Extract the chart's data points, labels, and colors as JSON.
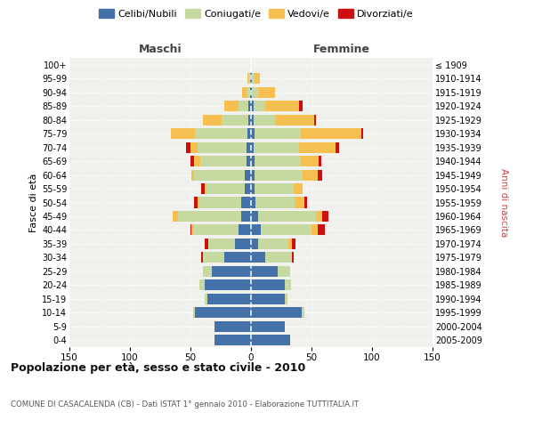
{
  "age_groups": [
    "100+",
    "95-99",
    "90-94",
    "85-89",
    "80-84",
    "75-79",
    "70-74",
    "65-69",
    "60-64",
    "55-59",
    "50-54",
    "45-49",
    "40-44",
    "35-39",
    "30-34",
    "25-29",
    "20-24",
    "15-19",
    "10-14",
    "5-9",
    "0-4"
  ],
  "birth_years": [
    "≤ 1909",
    "1910-1914",
    "1915-1919",
    "1920-1924",
    "1925-1929",
    "1930-1934",
    "1935-1939",
    "1940-1944",
    "1945-1949",
    "1950-1954",
    "1955-1959",
    "1960-1964",
    "1965-1969",
    "1970-1974",
    "1975-1979",
    "1980-1984",
    "1985-1989",
    "1990-1994",
    "1995-1999",
    "2000-2004",
    "2005-2009"
  ],
  "maschi": {
    "celibi": [
      0,
      1,
      1,
      2,
      2,
      3,
      4,
      4,
      5,
      5,
      8,
      8,
      10,
      13,
      22,
      32,
      38,
      36,
      46,
      30,
      30
    ],
    "coniugati": [
      0,
      1,
      2,
      8,
      22,
      43,
      40,
      38,
      42,
      32,
      35,
      52,
      38,
      22,
      18,
      8,
      5,
      2,
      2,
      0,
      0
    ],
    "vedovi": [
      0,
      1,
      4,
      12,
      16,
      20,
      6,
      5,
      2,
      1,
      1,
      5,
      1,
      0,
      0,
      0,
      0,
      0,
      0,
      0,
      0
    ],
    "divorziati": [
      0,
      0,
      0,
      0,
      0,
      0,
      4,
      3,
      0,
      3,
      3,
      0,
      1,
      3,
      1,
      0,
      0,
      0,
      0,
      0,
      0
    ]
  },
  "femmine": {
    "nubili": [
      0,
      1,
      1,
      2,
      2,
      3,
      2,
      3,
      3,
      3,
      4,
      6,
      8,
      6,
      12,
      22,
      28,
      28,
      42,
      28,
      32
    ],
    "coniugate": [
      0,
      2,
      5,
      10,
      18,
      38,
      38,
      38,
      40,
      32,
      32,
      48,
      42,
      25,
      22,
      10,
      5,
      2,
      2,
      0,
      0
    ],
    "vedove": [
      0,
      4,
      14,
      28,
      32,
      50,
      30,
      15,
      12,
      8,
      8,
      5,
      5,
      3,
      0,
      0,
      0,
      0,
      0,
      0,
      0
    ],
    "divorziate": [
      0,
      0,
      0,
      3,
      2,
      2,
      3,
      2,
      4,
      0,
      2,
      5,
      6,
      3,
      1,
      0,
      0,
      0,
      0,
      0,
      0
    ]
  },
  "colors": {
    "celibi": "#4472a8",
    "coniugati": "#c5d9a0",
    "vedovi": "#f5c050",
    "divorziati": "#cc1010"
  },
  "xlim": 150,
  "title": "Popolazione per età, sesso e stato civile - 2010",
  "subtitle": "COMUNE DI CASACALENDA (CB) - Dati ISTAT 1° gennaio 2010 - Elaborazione TUTTITALIA.IT",
  "ylabel_left": "Fasce di età",
  "ylabel_right": "Anni di nascita",
  "xlabel_maschi": "Maschi",
  "xlabel_femmine": "Femmine",
  "bg_color": "#f0f0ec",
  "legend_labels": [
    "Celibi/Nubili",
    "Coniugati/e",
    "Vedovi/e",
    "Divorziati/e"
  ]
}
